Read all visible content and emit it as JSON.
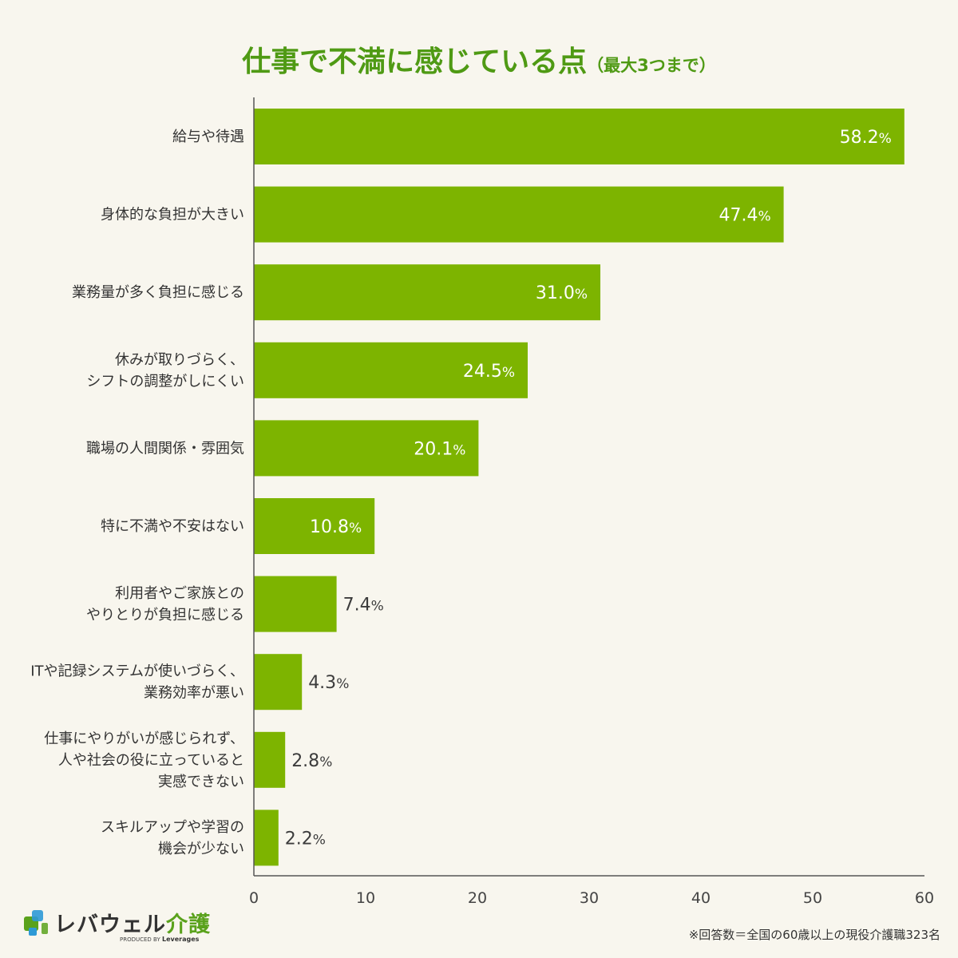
{
  "title": {
    "main": "仕事で不満に感じている点",
    "sub": "（最大3つまで）"
  },
  "chart_data": {
    "type": "bar",
    "orientation": "horizontal",
    "title": "仕事で不満に感じている点（最大3つまで）",
    "categories": [
      [
        "給与や待遇"
      ],
      [
        "身体的な負担が大きい"
      ],
      [
        "業務量が多く負担に感じる"
      ],
      [
        "休みが取りづらく、",
        "シフトの調整がしにくい"
      ],
      [
        "職場の人間関係・雰囲気"
      ],
      [
        "特に不満や不安はない"
      ],
      [
        "利用者やご家族との",
        "やりとりが負担に感じる"
      ],
      [
        "ITや記録システムが使いづらく、",
        "業務効率が悪い"
      ],
      [
        "仕事にやりがいが感じられず、",
        "人や社会の役に立っていると",
        "実感できない"
      ],
      [
        "スキルアップや学習の",
        "機会が少ない"
      ]
    ],
    "values": [
      58.2,
      47.4,
      31.0,
      24.5,
      20.1,
      10.8,
      7.4,
      4.3,
      2.8,
      2.2
    ],
    "value_labels": [
      "58.2",
      "47.4",
      "31.0",
      "24.5",
      "20.1",
      "10.8",
      "7.4",
      "4.3",
      "2.8",
      "2.2"
    ],
    "value_suffix": "%",
    "xlim": [
      0,
      60
    ],
    "xticks": [
      0,
      10,
      20,
      30,
      40,
      50,
      60
    ],
    "grid": false,
    "bar_color": "#7db400"
  },
  "logo": {
    "name": "レバウェル",
    "accent": "介護",
    "produced_prefix": "PRODUCED BY",
    "produced_brand": "Leverages"
  },
  "footnote": "※回答数＝全国の60歳以上の現役介護職323名",
  "colors": {
    "title": "#4f9a14",
    "bar": "#7db400",
    "background": "#f8f6ee"
  }
}
